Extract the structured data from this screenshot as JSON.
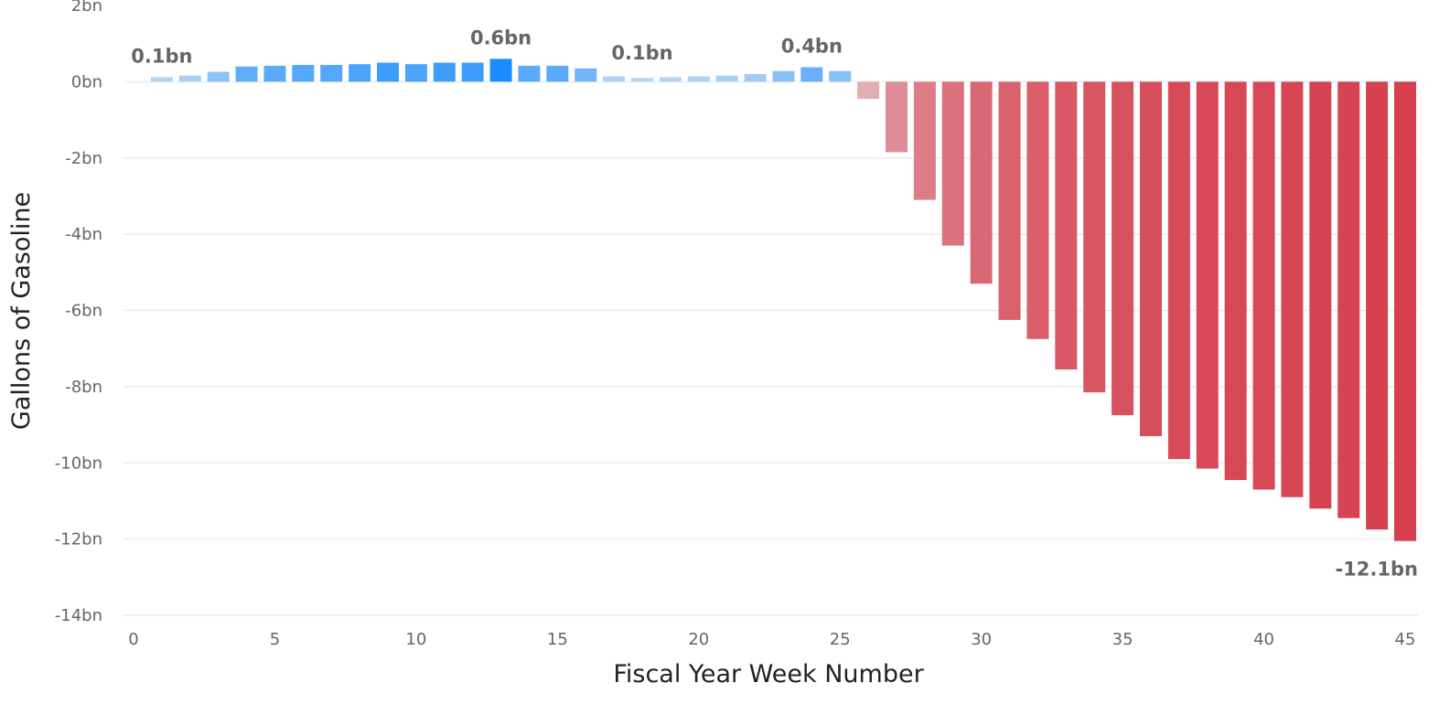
{
  "chart_data": {
    "type": "bar",
    "xlabel": "Fiscal Year Week Number",
    "ylabel": "Gallons of Gasoline",
    "xlim": [
      0,
      45
    ],
    "ylim": [
      -14,
      2
    ],
    "x_ticks": [
      0,
      5,
      10,
      15,
      20,
      25,
      30,
      35,
      40,
      45
    ],
    "x_tick_labels": [
      "0",
      "5",
      "10",
      "15",
      "20",
      "25",
      "30",
      "35",
      "40",
      "45"
    ],
    "y_ticks": [
      2,
      0,
      -2,
      -4,
      -6,
      -8,
      -10,
      -12,
      -14
    ],
    "y_tick_labels": [
      "2bn",
      "0bn",
      "-2bn",
      "-4bn",
      "-6bn",
      "-8bn",
      "-10bn",
      "-12bn",
      "-14bn"
    ],
    "grid": true,
    "unit": "bn",
    "x": [
      1,
      2,
      3,
      4,
      5,
      6,
      7,
      8,
      9,
      10,
      11,
      12,
      13,
      14,
      15,
      16,
      17,
      18,
      19,
      20,
      21,
      22,
      23,
      24,
      25,
      26,
      27,
      28,
      29,
      30,
      31,
      32,
      33,
      34,
      35,
      36,
      37,
      38,
      39,
      40,
      41,
      42,
      43,
      44,
      45
    ],
    "values": [
      0.12,
      0.16,
      0.26,
      0.4,
      0.42,
      0.44,
      0.44,
      0.46,
      0.5,
      0.46,
      0.5,
      0.5,
      0.6,
      0.42,
      0.42,
      0.35,
      0.14,
      0.1,
      0.12,
      0.14,
      0.16,
      0.2,
      0.28,
      0.38,
      0.28,
      -0.45,
      -1.85,
      -3.1,
      -4.3,
      -5.3,
      -6.25,
      -6.75,
      -7.55,
      -8.15,
      -8.75,
      -9.3,
      -9.9,
      -10.15,
      -10.45,
      -10.7,
      -10.9,
      -11.2,
      -11.45,
      -11.75,
      -12.05
    ],
    "data_labels": [
      {
        "x": 1,
        "text": "0.1bn",
        "position": "above"
      },
      {
        "x": 13,
        "text": "0.6bn",
        "position": "above"
      },
      {
        "x": 18,
        "text": "0.1bn",
        "position": "above"
      },
      {
        "x": 24,
        "text": "0.4bn",
        "position": "above"
      },
      {
        "x": 45,
        "text": "-12.1bn",
        "position": "below"
      }
    ],
    "colors": {
      "positive_min": "#c9dff3",
      "positive_max": "#1a8cff",
      "negative_min": "#e6e1e2",
      "negative_max": "#d6404f",
      "tick_text": "#666666",
      "gridline": "#ececec"
    }
  }
}
